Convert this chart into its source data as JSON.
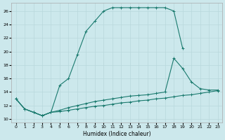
{
  "xlabel": "Humidex (Indice chaleur)",
  "bg_color": "#cce8ec",
  "line_color": "#1a7a6e",
  "grid_color": "#b0d0d4",
  "xlim": [
    -0.5,
    23.5
  ],
  "ylim": [
    9.5,
    27.2
  ],
  "xticks": [
    0,
    1,
    2,
    3,
    4,
    5,
    6,
    7,
    8,
    9,
    10,
    11,
    12,
    13,
    14,
    15,
    16,
    17,
    18,
    19,
    20,
    21,
    22,
    23
  ],
  "yticks": [
    10,
    12,
    14,
    16,
    18,
    20,
    22,
    24,
    26
  ],
  "curve1_x": [
    0,
    1,
    2,
    3,
    4,
    5,
    6,
    7,
    8,
    9,
    10,
    11,
    12,
    13,
    14,
    15,
    16,
    17,
    18,
    19
  ],
  "curve1_y": [
    13,
    11.5,
    11,
    10.5,
    11,
    15,
    16,
    19.5,
    23,
    24.5,
    26,
    26.5,
    26.5,
    26.5,
    26.5,
    26.5,
    26.5,
    26.5,
    26,
    20.5
  ],
  "curve2_x": [
    0,
    1,
    2,
    3,
    4,
    5,
    6,
    7,
    8,
    9,
    10,
    11,
    12,
    13,
    14,
    15,
    16,
    17,
    18,
    19,
    20,
    21,
    22,
    23
  ],
  "curve2_y": [
    13,
    11.5,
    11,
    10.5,
    11,
    11.3,
    11.7,
    12.0,
    12.3,
    12.6,
    12.8,
    13.0,
    13.2,
    13.4,
    13.5,
    13.6,
    13.8,
    14.0,
    19.0,
    17.5,
    15.5,
    14.5,
    14.3,
    14.3
  ],
  "curve3_x": [
    0,
    1,
    2,
    3,
    4,
    5,
    6,
    7,
    8,
    9,
    10,
    11,
    12,
    13,
    14,
    15,
    16,
    17,
    18,
    19,
    20,
    21,
    22,
    23
  ],
  "curve3_y": [
    13,
    11.5,
    11,
    10.5,
    11,
    11.1,
    11.3,
    11.5,
    11.7,
    11.9,
    12.0,
    12.2,
    12.4,
    12.5,
    12.7,
    12.8,
    13.0,
    13.1,
    13.3,
    13.5,
    13.6,
    13.8,
    14.0,
    14.2
  ]
}
